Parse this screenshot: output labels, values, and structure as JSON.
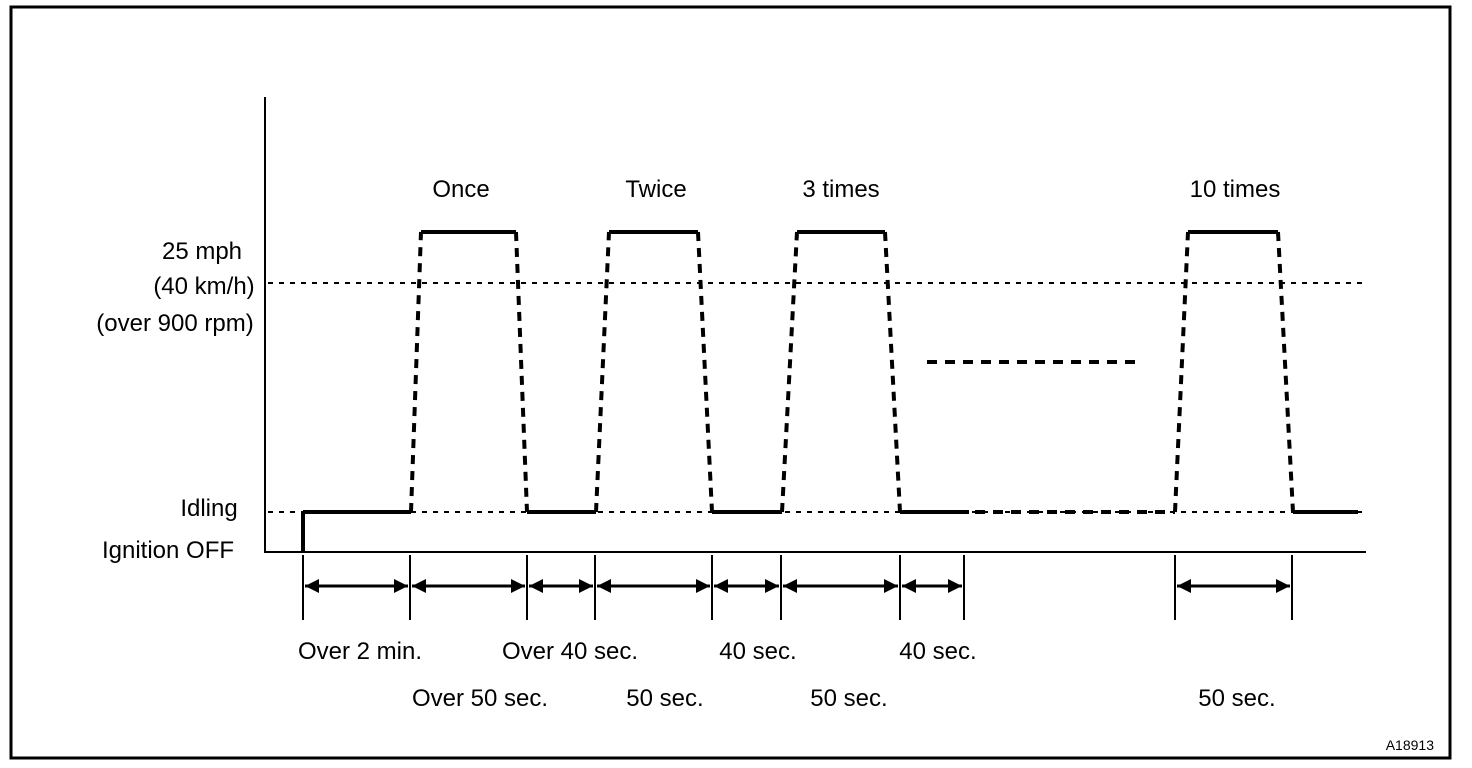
{
  "figure_code": "A18913",
  "levels": {
    "speed_mph": "25 mph",
    "speed_kmh": "(40 km/h)",
    "speed_rpm": "(over 900 rpm)",
    "idling": "Idling",
    "ignition_off": "Ignition OFF"
  },
  "cycles": [
    {
      "label": "Once"
    },
    {
      "label": "Twice"
    },
    {
      "label": "3 times"
    },
    {
      "label": "10 times"
    }
  ],
  "intervals": {
    "row1": [
      "Over 2 min.",
      "Over 40 sec.",
      "40 sec.",
      "40 sec."
    ],
    "row2": [
      "Over 50 sec.",
      "50 sec.",
      "50 sec.",
      "50 sec."
    ]
  }
}
